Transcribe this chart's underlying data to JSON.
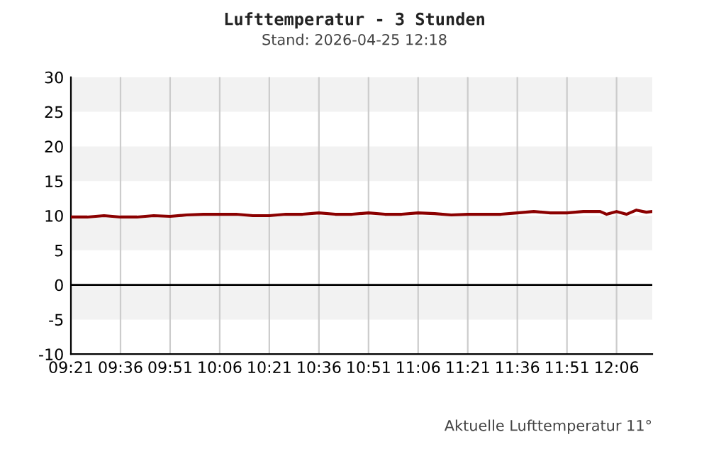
{
  "chart_data": {
    "type": "line",
    "title": "Lufttemperatur - 3 Stunden",
    "subtitle": "Stand: 2026-04-25 12:18",
    "annotations": [
      "Aktuelle Lufttemperatur 11°"
    ],
    "series": [
      {
        "color": "#8b0000",
        "x": [
          9.35,
          9.433,
          9.517,
          9.6,
          9.683,
          9.767,
          9.85,
          9.933,
          10.017,
          10.1,
          10.183,
          10.267,
          10.35,
          10.433,
          10.517,
          10.6,
          10.683,
          10.767,
          10.85,
          10.933,
          11.017,
          11.1,
          11.183,
          11.267,
          11.35,
          11.433,
          11.517,
          11.6,
          11.683,
          11.767,
          11.85,
          11.933,
          11.983,
          12.017,
          12.05,
          12.1,
          12.15,
          12.2,
          12.25,
          12.28
        ],
        "values": [
          9.8,
          9.8,
          10.0,
          9.8,
          9.8,
          10.0,
          9.9,
          10.1,
          10.2,
          10.2,
          10.2,
          10.0,
          10.0,
          10.2,
          10.2,
          10.4,
          10.2,
          10.2,
          10.4,
          10.2,
          10.2,
          10.4,
          10.3,
          10.1,
          10.2,
          10.2,
          10.2,
          10.4,
          10.6,
          10.4,
          10.4,
          10.6,
          10.6,
          10.6,
          10.2,
          10.6,
          10.2,
          10.8,
          10.5,
          10.6
        ]
      }
    ],
    "xlim": [
      9.35,
      12.28
    ],
    "xticks": [
      {
        "value": 9.35,
        "label": "09:21"
      },
      {
        "value": 9.6,
        "label": "09:36"
      },
      {
        "value": 9.85,
        "label": "09:51"
      },
      {
        "value": 10.1,
        "label": "10:06"
      },
      {
        "value": 10.35,
        "label": "10:21"
      },
      {
        "value": 10.6,
        "label": "10:36"
      },
      {
        "value": 10.85,
        "label": "10:51"
      },
      {
        "value": 11.1,
        "label": "11:06"
      },
      {
        "value": 11.35,
        "label": "11:21"
      },
      {
        "value": 11.6,
        "label": "11:36"
      },
      {
        "value": 11.85,
        "label": "11:51"
      },
      {
        "value": 12.1,
        "label": "12:06"
      }
    ],
    "ylim": [
      -10,
      30
    ],
    "yticks": [
      -10,
      -5,
      0,
      5,
      10,
      15,
      20,
      25,
      30
    ],
    "ref_lines": [
      {
        "axis": "y",
        "value": 0,
        "color": "#000000"
      }
    ],
    "grid": "x",
    "line_style": "solid",
    "marker": "none"
  }
}
